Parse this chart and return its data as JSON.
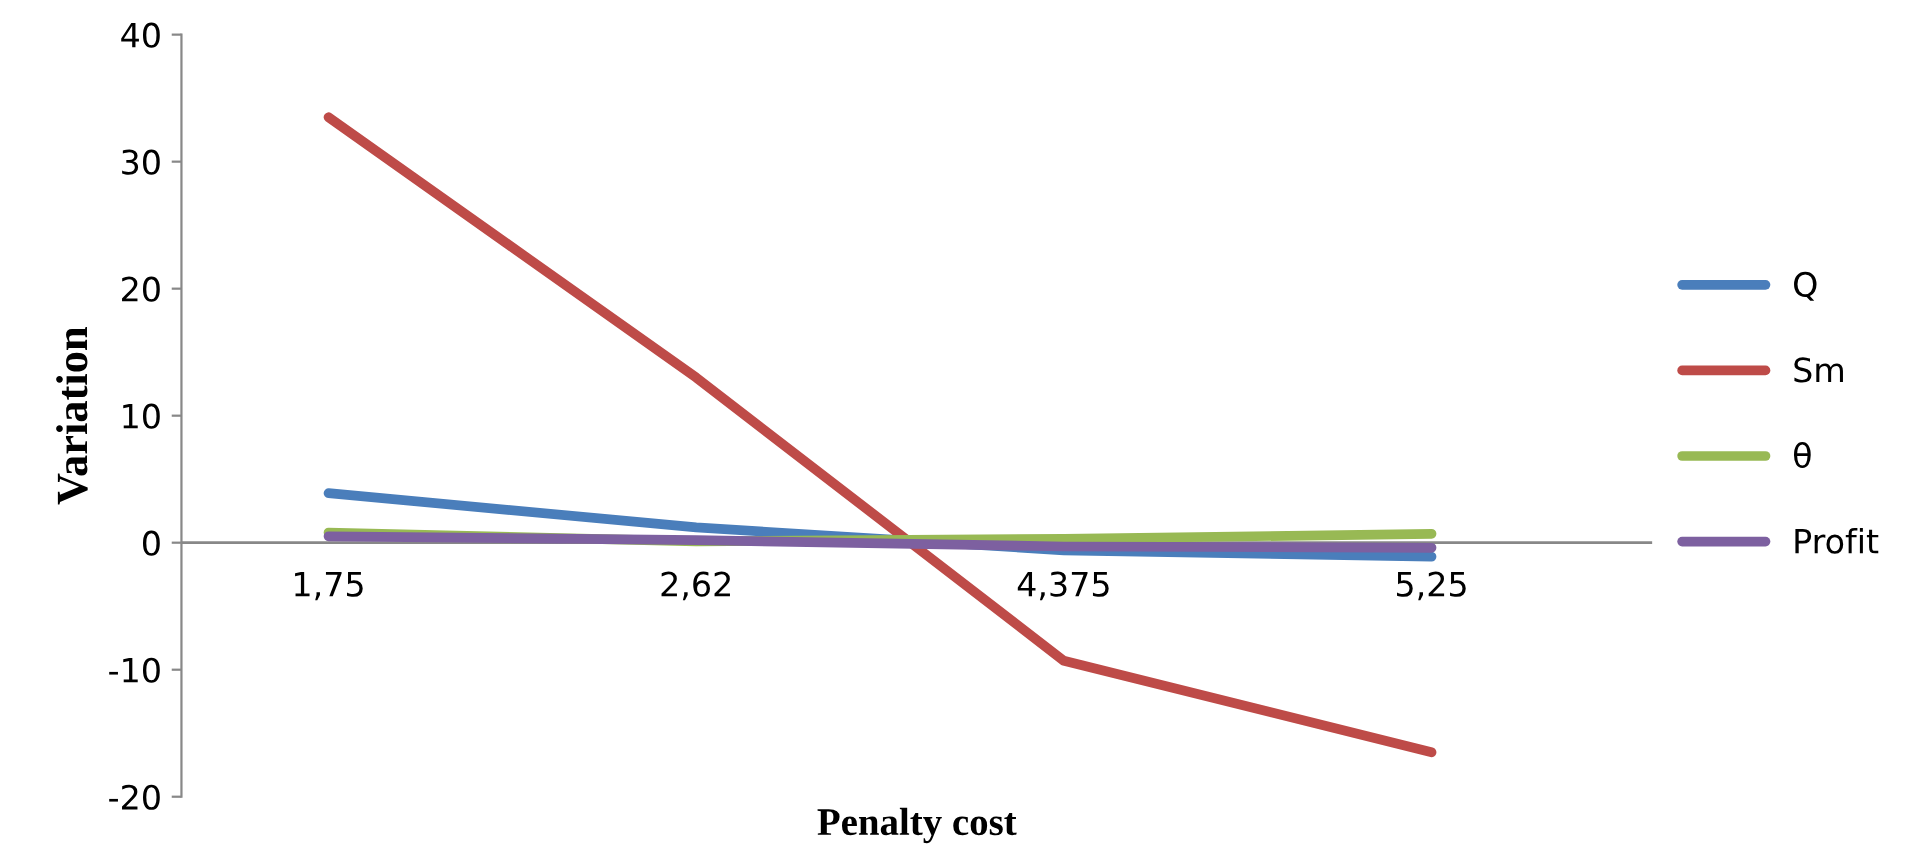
{
  "chart_data": {
    "type": "line",
    "xlabel": "Penalty cost",
    "ylabel": "Variation",
    "categories": [
      "1,75",
      "2,62",
      "4,375",
      "5,25"
    ],
    "series": [
      {
        "name": "Q",
        "color": "#4a7ebb",
        "values": [
          3.9,
          1.2,
          -0.6,
          -1.1
        ]
      },
      {
        "name": "Sm",
        "color": "#be4b48",
        "values": [
          33.5,
          13,
          -9.3,
          -16.5
        ]
      },
      {
        "name": "θ",
        "color": "#98b954",
        "values": [
          0.8,
          0.1,
          0.3,
          0.7
        ]
      },
      {
        "name": "Profit",
        "color": "#7d60a0",
        "values": [
          0.5,
          0.2,
          -0.3,
          -0.4
        ]
      }
    ],
    "ylim": [
      -20,
      40
    ],
    "yticks": [
      -20,
      -10,
      0,
      10,
      20,
      30,
      40
    ],
    "grid": false,
    "legend": "right",
    "marker": "none",
    "line_style": "solid"
  }
}
